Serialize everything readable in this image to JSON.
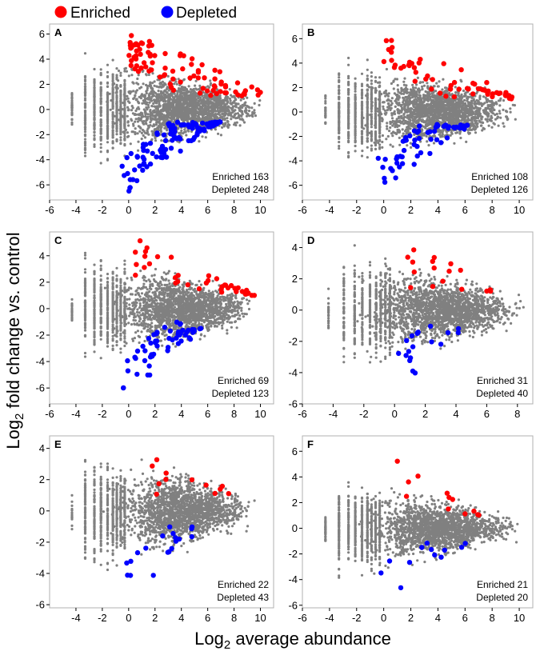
{
  "figure": {
    "xlabel": "Log2 average abundance",
    "xlabel_main": "Log",
    "xlabel_sub": "2",
    "xlabel_rest": " average abundance",
    "ylabel": "Log2 fold change vs. control",
    "ylabel_main": "Log",
    "ylabel_sub": "2",
    "ylabel_rest": " fold change vs. control"
  },
  "legend": [
    {
      "label": "Enriched",
      "color": "#ff0000"
    },
    {
      "label": "Depleted",
      "color": "#0000ff"
    }
  ],
  "colors": {
    "background": "#808080",
    "enriched": "#ff0000",
    "depleted": "#0000ff"
  },
  "chart_data": [
    {
      "panel": "A",
      "type": "scatter",
      "xlim": [
        -6,
        11
      ],
      "ylim": [
        -7.2,
        6.8
      ],
      "xticks": [
        -6,
        -4,
        -2,
        0,
        2,
        4,
        6,
        8,
        10
      ],
      "yticks": [
        -6,
        -4,
        -2,
        0,
        2,
        4,
        6
      ],
      "enriched_label": "Enriched 163",
      "depleted_label": "Depleted 248",
      "enriched_count": 163,
      "depleted_count": 248,
      "extent": {
        "xmin": -4.5,
        "xmax": 10.2,
        "ymax_center": 1.8,
        "spread": 2.6
      },
      "enriched_region": {
        "x": [
          0,
          10
        ],
        "y_top": [
          6.3,
          1.6
        ]
      },
      "depleted_region": {
        "x": [
          -0.5,
          7
        ],
        "y_bottom": [
          -7.0,
          -0.9
        ]
      }
    },
    {
      "panel": "B",
      "type": "scatter",
      "xlim": [
        -6,
        11
      ],
      "ylim": [
        -7.2,
        7.2
      ],
      "xticks": [
        -6,
        -4,
        -2,
        0,
        2,
        4,
        6,
        8,
        10
      ],
      "yticks": [
        -6,
        -4,
        -2,
        0,
        2,
        4,
        6
      ],
      "enriched_label": "Enriched 108",
      "depleted_label": "Depleted 126",
      "enriched_count": 108,
      "depleted_count": 126,
      "extent": {
        "xmin": -4.5,
        "xmax": 9.8,
        "ymax_center": 1.8,
        "spread": 2.6
      },
      "enriched_region": {
        "x": [
          0,
          9.8
        ],
        "y_top": [
          6.7,
          1.3
        ]
      },
      "depleted_region": {
        "x": [
          -0.5,
          6.3
        ],
        "y_bottom": [
          -6.6,
          -1.2
        ]
      }
    },
    {
      "panel": "C",
      "type": "scatter",
      "xlim": [
        -6,
        11
      ],
      "ylim": [
        -7.2,
        5.8
      ],
      "xticks": [
        -6,
        -4,
        -2,
        0,
        2,
        4,
        6,
        8,
        10
      ],
      "yticks": [
        -6,
        -4,
        -2,
        0,
        2,
        4
      ],
      "enriched_label": "Enriched 69",
      "depleted_label": "Depleted 123",
      "enriched_count": 69,
      "depleted_count": 123,
      "extent": {
        "xmin": -4.5,
        "xmax": 9.8,
        "ymax_center": 1.6,
        "spread": 2.4
      },
      "enriched_region": {
        "x": [
          0.5,
          9.8
        ],
        "y_top": [
          5.3,
          1.0
        ]
      },
      "depleted_region": {
        "x": [
          -0.5,
          5.8
        ],
        "y_bottom": [
          -7.0,
          -1.5
        ]
      }
    },
    {
      "panel": "D",
      "type": "scatter",
      "xlim": [
        -6,
        9
      ],
      "ylim": [
        -6,
        5
      ],
      "xticks": [
        -6,
        -4,
        -2,
        0,
        2,
        4,
        6,
        8
      ],
      "yticks": [
        -6,
        -4,
        -2,
        0,
        2,
        4
      ],
      "enriched_label": "Enriched 31",
      "depleted_label": "Depleted 40",
      "enriched_count": 31,
      "depleted_count": 40,
      "extent": {
        "xmin": -5,
        "xmax": 8.6,
        "ymax_center": 1.4,
        "spread": 2.2
      },
      "enriched_region": {
        "x": [
          0.8,
          7
        ],
        "y_top": [
          4.5,
          1.3
        ]
      },
      "depleted_region": {
        "x": [
          0.2,
          4.7
        ],
        "y_bottom": [
          -5.3,
          -1.5
        ]
      }
    },
    {
      "panel": "E",
      "type": "scatter",
      "xlim": [
        -6,
        11
      ],
      "ylim": [
        -6.2,
        4.8
      ],
      "xticks": [
        -4,
        -2,
        0,
        2,
        4,
        6,
        8,
        10
      ],
      "yticks": [
        -6,
        -4,
        -2,
        0,
        2,
        4
      ],
      "enriched_label": "Enriched 22",
      "depleted_label": "Depleted 43",
      "enriched_count": 22,
      "depleted_count": 43,
      "extent": {
        "xmin": -4.5,
        "xmax": 9.8,
        "ymax_center": 1.5,
        "spread": 2.3
      },
      "enriched_region": {
        "x": [
          1,
          8.5
        ],
        "y_top": [
          4.3,
          1.2
        ]
      },
      "depleted_region": {
        "x": [
          -0.2,
          5.2
        ],
        "y_bottom": [
          -5.8,
          -1.5
        ]
      }
    },
    {
      "panel": "F",
      "type": "scatter",
      "xlim": [
        -6,
        11
      ],
      "ylim": [
        -6.2,
        7.2
      ],
      "xticks": [
        -6,
        -4,
        -2,
        0,
        2,
        4,
        6,
        8,
        10
      ],
      "yticks": [
        -6,
        -4,
        -2,
        0,
        2,
        4,
        6
      ],
      "enriched_label": "Enriched 21",
      "depleted_label": "Depleted 20",
      "enriched_count": 21,
      "depleted_count": 20,
      "extent": {
        "xmin": -4.5,
        "xmax": 10,
        "ymax_center": 1.4,
        "spread": 2.2
      },
      "enriched_region": {
        "x": [
          1,
          7.2
        ],
        "y_top": [
          6.2,
          1.0
        ]
      },
      "depleted_region": {
        "x": [
          -0.2,
          6.2
        ],
        "y_bottom": [
          -5.8,
          -1.3
        ]
      }
    }
  ]
}
